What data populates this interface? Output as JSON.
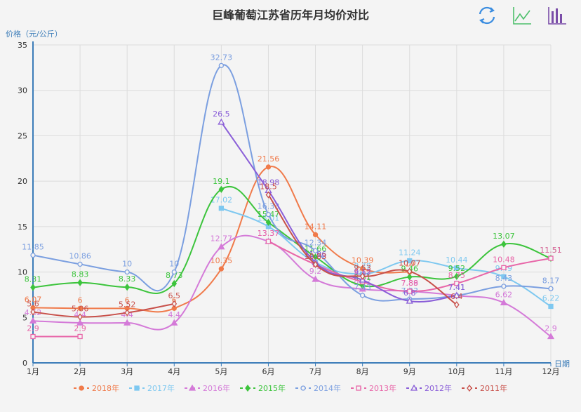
{
  "title": "巨峰葡萄江苏省历年月均价对比",
  "toolbar": [
    {
      "name": "refresh-icon",
      "label": "还原",
      "color": "#3b8de0"
    },
    {
      "name": "line-chart-icon",
      "label": "折线图",
      "color": "#4cbf6b"
    },
    {
      "name": "bar-chart-icon",
      "label": "柱状图",
      "color": "#7a4da8"
    }
  ],
  "axis": {
    "y_name": "价格（元/公斤）",
    "x_name": "日期",
    "y_ticks": [
      "0",
      "5",
      "10",
      "15",
      "20",
      "25",
      "30",
      "35"
    ],
    "x_ticks": [
      "1月",
      "2月",
      "3月",
      "4月",
      "5月",
      "6月",
      "7月",
      "8月",
      "9月",
      "10月",
      "11月",
      "12月"
    ]
  },
  "legend": [
    "2018年",
    "2017年",
    "2016年",
    "2015年",
    "2014年",
    "2013年",
    "2012年",
    "2011年"
  ],
  "chart_data": {
    "type": "line",
    "title": "巨峰葡萄江苏省历年月均价对比",
    "xlabel": "日期",
    "ylabel": "价格（元/公斤）",
    "ylim": [
      0,
      35
    ],
    "grid": true,
    "legend_position": "bottom",
    "categories": [
      "1月",
      "2月",
      "3月",
      "4月",
      "5月",
      "6月",
      "7月",
      "8月",
      "9月",
      "10月",
      "11月",
      "12月"
    ],
    "series": [
      {
        "name": "2018年",
        "color": "#f07a4a",
        "marker": "circle-filled",
        "values": [
          6.07,
          6,
          6,
          6,
          10.35,
          21.56,
          14.11,
          10.39,
          10,
          null,
          null,
          null
        ]
      },
      {
        "name": "2017年",
        "color": "#7ec8f0",
        "marker": "square-filled",
        "values": [
          null,
          null,
          null,
          null,
          17.02,
          15.01,
          11.06,
          9.79,
          11.24,
          10.44,
          9.49,
          6.22
        ]
      },
      {
        "name": "2016年",
        "color": "#d47ad8",
        "marker": "triangle-filled",
        "values": [
          4.62,
          4.4,
          4.4,
          4.4,
          12.77,
          13.37,
          9.2,
          8.12,
          7.89,
          7.41,
          6.62,
          2.9
        ]
      },
      {
        "name": "2015年",
        "color": "#3cc43c",
        "marker": "diamond-filled",
        "values": [
          8.31,
          8.83,
          8.33,
          8.73,
          19.1,
          15.47,
          11.66,
          8.51,
          9.46,
          9.52,
          13.07,
          11.51
        ]
      },
      {
        "name": "2014年",
        "color": "#7b9fe0",
        "marker": "circle-hollow",
        "values": [
          11.85,
          10.86,
          10,
          10,
          32.73,
          16.33,
          12.34,
          7.43,
          7.03,
          7.41,
          8.43,
          8.17
        ]
      },
      {
        "name": "2013年",
        "color": "#e866a8",
        "marker": "square-hollow",
        "values": [
          2.9,
          2.9,
          null,
          null,
          null,
          13.37,
          10.83,
          8.92,
          7.88,
          8.75,
          10.48,
          11.51
        ]
      },
      {
        "name": "2012年",
        "color": "#8a5ed8",
        "marker": "triangle-hollow",
        "values": [
          null,
          null,
          null,
          null,
          26.5,
          18.98,
          11.06,
          9.12,
          6.8,
          7.41,
          null,
          null
        ]
      },
      {
        "name": "2011年",
        "color": "#c8504a",
        "marker": "diamond-hollow",
        "values": [
          5.6,
          5.06,
          5.52,
          6.5,
          null,
          18.5,
          10.83,
          9.53,
          10.07,
          6.4,
          null,
          null
        ]
      }
    ]
  }
}
